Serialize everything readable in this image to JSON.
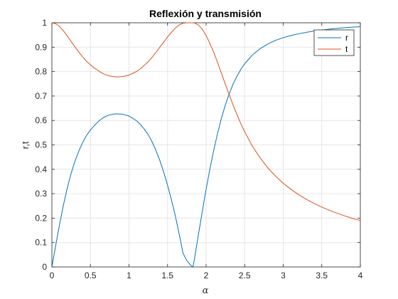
{
  "chart_data": {
    "type": "line",
    "title": "Reflexión y transmisión",
    "xlabel": "α",
    "ylabel": "r,t",
    "xlim": [
      0,
      4
    ],
    "ylim": [
      0,
      1
    ],
    "x_ticks": [
      "0",
      "0.5",
      "1",
      "1.5",
      "2",
      "2.5",
      "3",
      "3.5",
      "4"
    ],
    "y_ticks": [
      "0",
      "0.1",
      "0.2",
      "0.3",
      "0.4",
      "0.5",
      "0.6",
      "0.7",
      "0.8",
      "0.9",
      "1"
    ],
    "grid": true,
    "legend_position": "top-right",
    "series": [
      {
        "name": "r",
        "color": "#0072BD",
        "x": [
          0,
          0.05,
          0.1,
          0.15,
          0.2,
          0.25,
          0.3,
          0.35,
          0.4,
          0.45,
          0.5,
          0.55,
          0.6,
          0.65,
          0.7,
          0.75,
          0.8,
          0.85,
          0.9,
          0.95,
          1.0,
          1.05,
          1.1,
          1.15,
          1.2,
          1.25,
          1.3,
          1.35,
          1.4,
          1.45,
          1.5,
          1.55,
          1.6,
          1.65,
          1.7,
          1.75,
          1.8,
          1.83,
          1.85,
          1.9,
          1.95,
          2.0,
          2.05,
          2.1,
          2.15,
          2.2,
          2.25,
          2.3,
          2.35,
          2.4,
          2.45,
          2.5,
          2.6,
          2.7,
          2.8,
          2.9,
          3.0,
          3.1,
          3.2,
          3.3,
          3.4,
          3.5,
          3.6,
          3.7,
          3.8,
          3.9,
          4.0
        ],
        "y": [
          0,
          0.089,
          0.175,
          0.254,
          0.324,
          0.384,
          0.434,
          0.475,
          0.51,
          0.539,
          0.561,
          0.579,
          0.595,
          0.608,
          0.617,
          0.623,
          0.626,
          0.627,
          0.626,
          0.623,
          0.618,
          0.609,
          0.598,
          0.583,
          0.564,
          0.541,
          0.512,
          0.477,
          0.436,
          0.389,
          0.335,
          0.276,
          0.21,
          0.137,
          0.057,
          0.026,
          0.007,
          0,
          0.035,
          0.132,
          0.226,
          0.318,
          0.403,
          0.479,
          0.549,
          0.611,
          0.664,
          0.709,
          0.749,
          0.781,
          0.809,
          0.832,
          0.868,
          0.894,
          0.913,
          0.928,
          0.939,
          0.948,
          0.955,
          0.961,
          0.966,
          0.97,
          0.974,
          0.977,
          0.98,
          0.982,
          0.984
        ]
      },
      {
        "name": "t",
        "color": "#D95319",
        "x": [
          0,
          0.05,
          0.1,
          0.15,
          0.2,
          0.25,
          0.3,
          0.35,
          0.4,
          0.45,
          0.5,
          0.55,
          0.6,
          0.65,
          0.7,
          0.75,
          0.8,
          0.85,
          0.9,
          0.95,
          1.0,
          1.05,
          1.1,
          1.15,
          1.2,
          1.25,
          1.3,
          1.35,
          1.4,
          1.45,
          1.5,
          1.55,
          1.6,
          1.65,
          1.7,
          1.75,
          1.8,
          1.83,
          1.85,
          1.9,
          1.95,
          2.0,
          2.05,
          2.1,
          2.15,
          2.2,
          2.25,
          2.3,
          2.35,
          2.4,
          2.45,
          2.5,
          2.6,
          2.7,
          2.8,
          2.9,
          3.0,
          3.1,
          3.2,
          3.3,
          3.4,
          3.5,
          3.6,
          3.7,
          3.8,
          3.9,
          4.0
        ],
        "y": [
          1.0,
          0.996,
          0.985,
          0.967,
          0.946,
          0.923,
          0.901,
          0.88,
          0.86,
          0.842,
          0.828,
          0.815,
          0.804,
          0.794,
          0.787,
          0.782,
          0.779,
          0.778,
          0.779,
          0.782,
          0.786,
          0.793,
          0.801,
          0.812,
          0.826,
          0.841,
          0.859,
          0.879,
          0.9,
          0.921,
          0.942,
          0.961,
          0.978,
          0.991,
          0.998,
          1.0,
          1.0,
          1.0,
          0.999,
          0.991,
          0.974,
          0.948,
          0.915,
          0.878,
          0.836,
          0.792,
          0.748,
          0.705,
          0.663,
          0.624,
          0.587,
          0.554,
          0.495,
          0.447,
          0.406,
          0.372,
          0.343,
          0.318,
          0.296,
          0.277,
          0.26,
          0.245,
          0.232,
          0.22,
          0.209,
          0.199,
          0.19
        ]
      }
    ]
  }
}
